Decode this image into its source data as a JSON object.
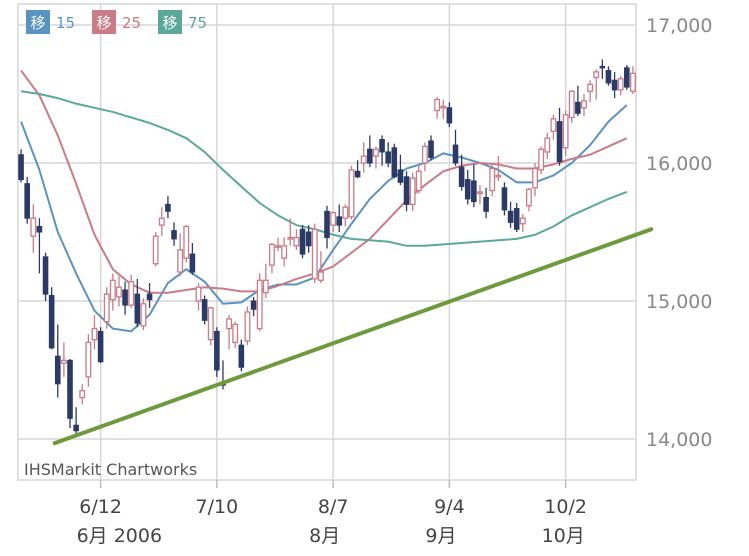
{
  "chart_data": {
    "type": "candlestick",
    "watermark": "IHSMarkit Chartworks",
    "legend": [
      {
        "badge": "移",
        "label": "15",
        "color": "#5b93c0"
      },
      {
        "badge": "移",
        "label": "25",
        "color": "#c97b86"
      },
      {
        "badge": "移",
        "label": "75",
        "color": "#5ba89a"
      }
    ],
    "y_ticks": [
      "17,000",
      "16,000",
      "15,000",
      "14,000"
    ],
    "y_tick_values": [
      17000,
      16000,
      15000,
      14000
    ],
    "ylim": [
      13750,
      17150
    ],
    "x_ticks": [
      {
        "label": "6/12",
        "sub": "6月 2006",
        "day": 13
      },
      {
        "label": "7/10",
        "sub": "",
        "day": 32
      },
      {
        "label": "8/7",
        "sub": "8月",
        "day": 51
      },
      {
        "label": "9/4",
        "sub": "9月",
        "day": 70
      },
      {
        "label": "10/2",
        "sub": "10月",
        "day": 89
      }
    ],
    "ohlc": [
      [
        16060,
        16100,
        15860,
        15880
      ],
      [
        15850,
        15900,
        15560,
        15600
      ],
      [
        15470,
        15700,
        15350,
        15600
      ],
      [
        15540,
        15600,
        15200,
        15500
      ],
      [
        15320,
        15350,
        15000,
        15050
      ],
      [
        15040,
        15100,
        14650,
        14660
      ],
      [
        14600,
        14830,
        14300,
        14400
      ],
      [
        14550,
        14700,
        14450,
        14570
      ],
      [
        14570,
        14580,
        14080,
        14150
      ],
      [
        14100,
        14230,
        14030,
        14060
      ],
      [
        14300,
        14400,
        14250,
        14350
      ],
      [
        14450,
        14760,
        14380,
        14700
      ],
      [
        14720,
        14900,
        14650,
        14800
      ],
      [
        14780,
        14810,
        14550,
        14560
      ],
      [
        14850,
        15100,
        14800,
        15050
      ],
      [
        15010,
        15200,
        14930,
        15150
      ],
      [
        15030,
        15180,
        14960,
        15100
      ],
      [
        15080,
        15140,
        14900,
        14970
      ],
      [
        14970,
        15190,
        14950,
        15140
      ],
      [
        15050,
        15160,
        14810,
        14840
      ],
      [
        14820,
        15020,
        14790,
        14980
      ],
      [
        15050,
        15130,
        14950,
        15010
      ],
      [
        15270,
        15500,
        15250,
        15470
      ],
      [
        15550,
        15680,
        15470,
        15600
      ],
      [
        15700,
        15760,
        15600,
        15650
      ],
      [
        15510,
        15570,
        15400,
        15450
      ],
      [
        15210,
        15490,
        15180,
        15370
      ],
      [
        15310,
        15550,
        15280,
        15540
      ],
      [
        15340,
        15420,
        15190,
        15210
      ],
      [
        15000,
        15130,
        14930,
        15100
      ],
      [
        15010,
        15040,
        14830,
        14860
      ],
      [
        14720,
        14960,
        14680,
        14950
      ],
      [
        14780,
        14810,
        14450,
        14500
      ],
      [
        14410,
        14570,
        14360,
        14390
      ],
      [
        14800,
        14900,
        14650,
        14870
      ],
      [
        14700,
        14850,
        14660,
        14830
      ],
      [
        14680,
        14720,
        14490,
        14520
      ],
      [
        14710,
        14960,
        14680,
        14920
      ],
      [
        15000,
        15030,
        14890,
        14940
      ],
      [
        14800,
        15200,
        14780,
        15150
      ],
      [
        15060,
        15270,
        15020,
        15150
      ],
      [
        15260,
        15420,
        15200,
        15410
      ],
      [
        15400,
        15460,
        15360,
        15400
      ],
      [
        15310,
        15460,
        15250,
        15400
      ],
      [
        15460,
        15600,
        15400,
        15460
      ],
      [
        15400,
        15520,
        15370,
        15460
      ],
      [
        15520,
        15550,
        15310,
        15340
      ],
      [
        15500,
        15550,
        15350,
        15400
      ],
      [
        15160,
        15560,
        15130,
        15520
      ],
      [
        15150,
        15360,
        15130,
        15210
      ],
      [
        15650,
        15690,
        15380,
        15460
      ],
      [
        15550,
        15650,
        15500,
        15640
      ],
      [
        15610,
        15700,
        15500,
        15550
      ],
      [
        15600,
        15700,
        15540,
        15680
      ],
      [
        15610,
        15980,
        15590,
        15950
      ],
      [
        15940,
        16020,
        15890,
        15900
      ],
      [
        16000,
        16150,
        15930,
        16050
      ],
      [
        16100,
        16200,
        15970,
        16000
      ],
      [
        16050,
        16120,
        15960,
        16100
      ],
      [
        16170,
        16200,
        15980,
        16080
      ],
      [
        16080,
        16150,
        15970,
        16000
      ],
      [
        16110,
        16140,
        15890,
        15900
      ],
      [
        15950,
        16060,
        15840,
        15860
      ],
      [
        15900,
        15940,
        15650,
        15700
      ],
      [
        15700,
        15930,
        15650,
        15890
      ],
      [
        15800,
        16000,
        15780,
        15940
      ],
      [
        16000,
        16150,
        15940,
        16120
      ],
      [
        16160,
        16200,
        16020,
        16040
      ],
      [
        16380,
        16480,
        16320,
        16460
      ],
      [
        16400,
        16460,
        16320,
        16410
      ],
      [
        16400,
        16440,
        16260,
        16290
      ],
      [
        16130,
        16240,
        15980,
        16000
      ],
      [
        15970,
        16060,
        15800,
        15830
      ],
      [
        15880,
        15950,
        15700,
        15740
      ],
      [
        15870,
        15990,
        15680,
        15720
      ],
      [
        15780,
        15840,
        15700,
        15790
      ],
      [
        15750,
        15820,
        15600,
        15650
      ],
      [
        15800,
        16000,
        15760,
        15960
      ],
      [
        15900,
        16050,
        15870,
        15910
      ],
      [
        15820,
        15860,
        15620,
        15660
      ],
      [
        15650,
        15720,
        15530,
        15570
      ],
      [
        15670,
        15710,
        15500,
        15520
      ],
      [
        15560,
        15630,
        15500,
        15600
      ],
      [
        15690,
        15820,
        15650,
        15810
      ],
      [
        15820,
        16000,
        15760,
        15960
      ],
      [
        15950,
        16120,
        15920,
        16100
      ],
      [
        16080,
        16220,
        16030,
        16180
      ],
      [
        16230,
        16350,
        16170,
        16320
      ],
      [
        16300,
        16400,
        15980,
        16010
      ],
      [
        16110,
        16380,
        16050,
        16350
      ],
      [
        16330,
        16530,
        16290,
        16520
      ],
      [
        16440,
        16560,
        16340,
        16360
      ],
      [
        16400,
        16500,
        16340,
        16450
      ],
      [
        16520,
        16600,
        16440,
        16570
      ],
      [
        16620,
        16680,
        16460,
        16660
      ],
      [
        16700,
        16750,
        16610,
        16690
      ],
      [
        16670,
        16700,
        16560,
        16580
      ],
      [
        16600,
        16660,
        16470,
        16530
      ],
      [
        16530,
        16630,
        16490,
        16610
      ],
      [
        16690,
        16710,
        16530,
        16550
      ],
      [
        16520,
        16700,
        16500,
        16650
      ]
    ],
    "ma_series": [
      {
        "name": "15",
        "color": "#5b93c0",
        "x": [
          0,
          3,
          6,
          9,
          12,
          15,
          18,
          21,
          24,
          27,
          30,
          33,
          36,
          39,
          42,
          45,
          48,
          51,
          54,
          57,
          60,
          63,
          66,
          69,
          72,
          75,
          78,
          81,
          84,
          87,
          90,
          93,
          96,
          99
        ],
        "values": [
          16300,
          15950,
          15500,
          15200,
          14930,
          14800,
          14780,
          14900,
          15130,
          15230,
          15140,
          14980,
          14990,
          15080,
          15120,
          15120,
          15170,
          15370,
          15560,
          15740,
          15870,
          15960,
          16000,
          16070,
          16040,
          16000,
          15950,
          15860,
          15860,
          15910,
          16000,
          16130,
          16300,
          16420
        ]
      },
      {
        "name": "25",
        "color": "#c97b86",
        "x": [
          0,
          3,
          6,
          9,
          12,
          15,
          18,
          21,
          24,
          27,
          30,
          33,
          36,
          39,
          42,
          45,
          48,
          51,
          54,
          57,
          60,
          63,
          66,
          69,
          72,
          75,
          78,
          81,
          84,
          87,
          90,
          93,
          96,
          99
        ],
        "values": [
          16670,
          16490,
          16200,
          15850,
          15480,
          15230,
          15120,
          15060,
          15060,
          15080,
          15100,
          15090,
          15070,
          15070,
          15110,
          15160,
          15200,
          15250,
          15350,
          15450,
          15590,
          15730,
          15840,
          15940,
          15980,
          16000,
          15990,
          15960,
          15960,
          15990,
          16030,
          16060,
          16120,
          16180
        ]
      },
      {
        "name": "75",
        "color": "#5ba89a",
        "x": [
          0,
          3,
          6,
          9,
          12,
          15,
          18,
          21,
          24,
          27,
          30,
          33,
          36,
          39,
          42,
          45,
          48,
          51,
          54,
          57,
          60,
          63,
          66,
          69,
          72,
          75,
          78,
          81,
          84,
          87,
          90,
          93,
          96,
          99
        ],
        "values": [
          16520,
          16500,
          16470,
          16430,
          16400,
          16370,
          16330,
          16290,
          16240,
          16180,
          16080,
          15950,
          15830,
          15710,
          15620,
          15550,
          15520,
          15480,
          15450,
          15440,
          15430,
          15400,
          15400,
          15410,
          15420,
          15430,
          15440,
          15450,
          15480,
          15540,
          15620,
          15680,
          15740,
          15790
        ]
      }
    ],
    "trendline": {
      "color": "#6e9a3e",
      "from": {
        "day": 5.5,
        "value": 13970
      },
      "to": {
        "day": 103,
        "value": 15520
      }
    },
    "colors": {
      "up": "#c97b86",
      "down": "#2b3a66",
      "grid": "#d6d6d6"
    },
    "grid": true
  }
}
